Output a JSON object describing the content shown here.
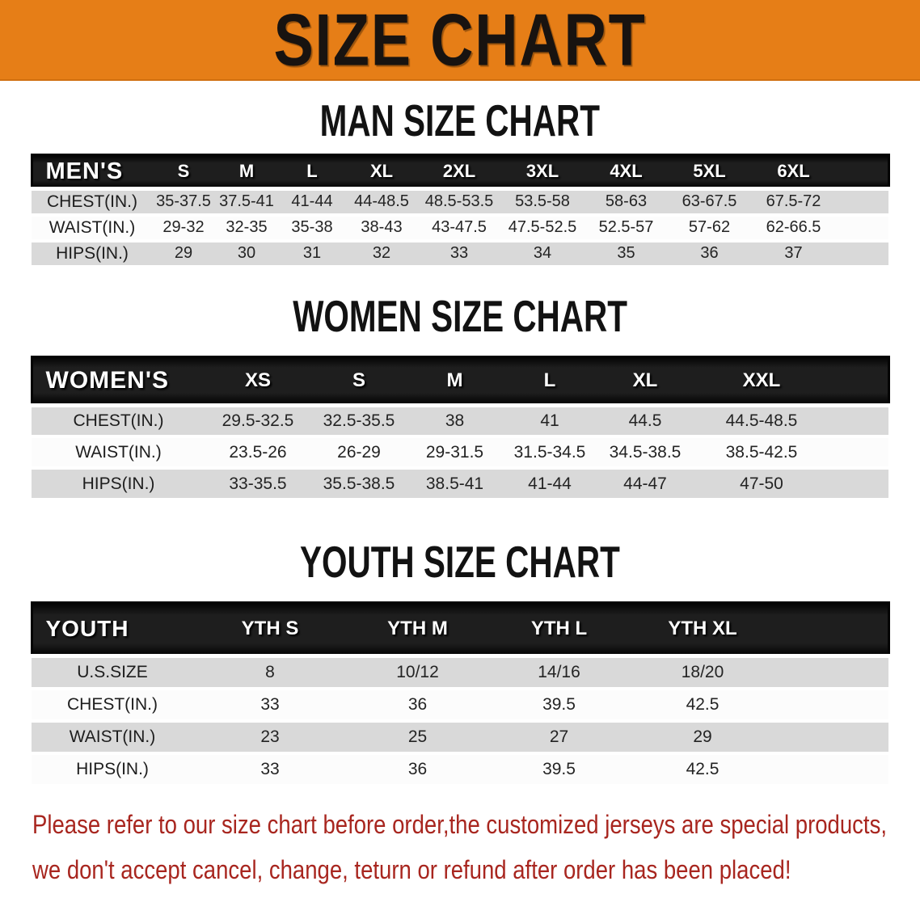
{
  "banner": {
    "title": "SIZE CHART",
    "bg_color": "#E67E17",
    "text_color": "#181310"
  },
  "sections": [
    {
      "heading": "MAN SIZE CHART",
      "table": {
        "label": "MEN'S",
        "columns": [
          "S",
          "M",
          "L",
          "XL",
          "2XL",
          "3XL",
          "4XL",
          "5XL",
          "6XL"
        ],
        "rows": [
          {
            "label": "CHEST(IN.)",
            "values": [
              "35-37.5",
              "37.5-41",
              "41-44",
              "44-48.5",
              "48.5-53.5",
              "53.5-58",
              "58-63",
              "63-67.5",
              "67.5-72"
            ]
          },
          {
            "label": "WAIST(IN.)",
            "values": [
              "29-32",
              "32-35",
              "35-38",
              "38-43",
              "43-47.5",
              "47.5-52.5",
              "52.5-57",
              "57-62",
              "62-66.5"
            ]
          },
          {
            "label": "HIPS(IN.)",
            "values": [
              "29",
              "30",
              "31",
              "32",
              "33",
              "34",
              "35",
              "36",
              "37"
            ]
          }
        ]
      }
    },
    {
      "heading": "WOMEN SIZE CHART",
      "table": {
        "label": "WOMEN'S",
        "columns": [
          "XS",
          "S",
          "M",
          "L",
          "XL",
          "XXL"
        ],
        "rows": [
          {
            "label": "CHEST(IN.)",
            "values": [
              "29.5-32.5",
              "32.5-35.5",
              "38",
              "41",
              "44.5",
              "44.5-48.5"
            ]
          },
          {
            "label": "WAIST(IN.)",
            "values": [
              "23.5-26",
              "26-29",
              "29-31.5",
              "31.5-34.5",
              "34.5-38.5",
              "38.5-42.5"
            ]
          },
          {
            "label": "HIPS(IN.)",
            "values": [
              "33-35.5",
              "35.5-38.5",
              "38.5-41",
              "41-44",
              "44-47",
              "47-50"
            ]
          }
        ]
      }
    },
    {
      "heading": "YOUTH SIZE CHART",
      "table": {
        "label": "YOUTH",
        "columns": [
          "YTH S",
          "YTH M",
          "YTH L",
          "YTH XL"
        ],
        "rows": [
          {
            "label": "U.S.SIZE",
            "values": [
              "8",
              "10/12",
              "14/16",
              "18/20"
            ]
          },
          {
            "label": "CHEST(IN.)",
            "values": [
              "33",
              "36",
              "39.5",
              "42.5"
            ]
          },
          {
            "label": "WAIST(IN.)",
            "values": [
              "23",
              "25",
              "27",
              "29"
            ]
          },
          {
            "label": "HIPS(IN.)",
            "values": [
              "33",
              "36",
              "39.5",
              "42.5"
            ]
          }
        ]
      }
    }
  ],
  "footer": {
    "line1": "Please refer to our size chart before order,the customized jerseys are special products,",
    "line2": "we don't accept cancel, change, teturn or refund after order has been placed!",
    "text_color": "#A8261F",
    "stripe_color": "#D9D9D9",
    "header_bar_color": "#1A1A1A"
  }
}
